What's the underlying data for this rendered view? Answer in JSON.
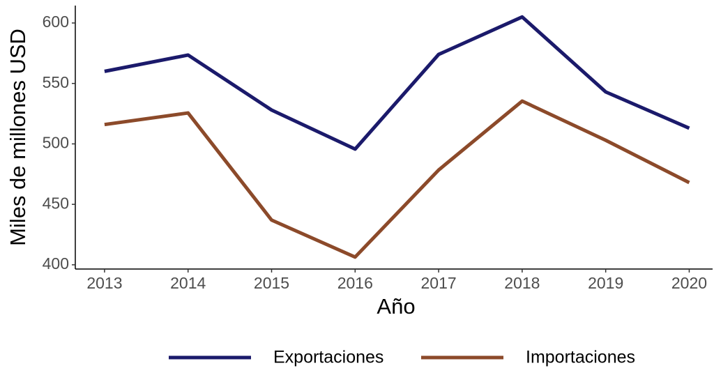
{
  "chart_data": {
    "type": "line",
    "x_label": "Año",
    "y_label": "Miles de millones USD",
    "x": [
      2013,
      2014,
      2015,
      2016,
      2017,
      2018,
      2019,
      2020
    ],
    "series": [
      {
        "name": "Exportaciones",
        "color": "#1b1a6b",
        "values": [
          560,
          573.5,
          528,
          495.7,
          574,
          605,
          543,
          513
        ]
      },
      {
        "name": "Importaciones",
        "color": "#8c4a2a",
        "values": [
          516,
          525.6,
          437,
          406.4,
          478.4,
          535.4,
          503,
          468
        ]
      }
    ],
    "xlim": [
      2012.65,
      2020.28
    ],
    "xticks": [
      2013,
      2014,
      2015,
      2016,
      2017,
      2018,
      2019,
      2020
    ],
    "ylim": [
      396.5,
      614.4
    ],
    "yticks": [
      400,
      450,
      500,
      550,
      600
    ],
    "grid": false,
    "legend": "bottom"
  }
}
